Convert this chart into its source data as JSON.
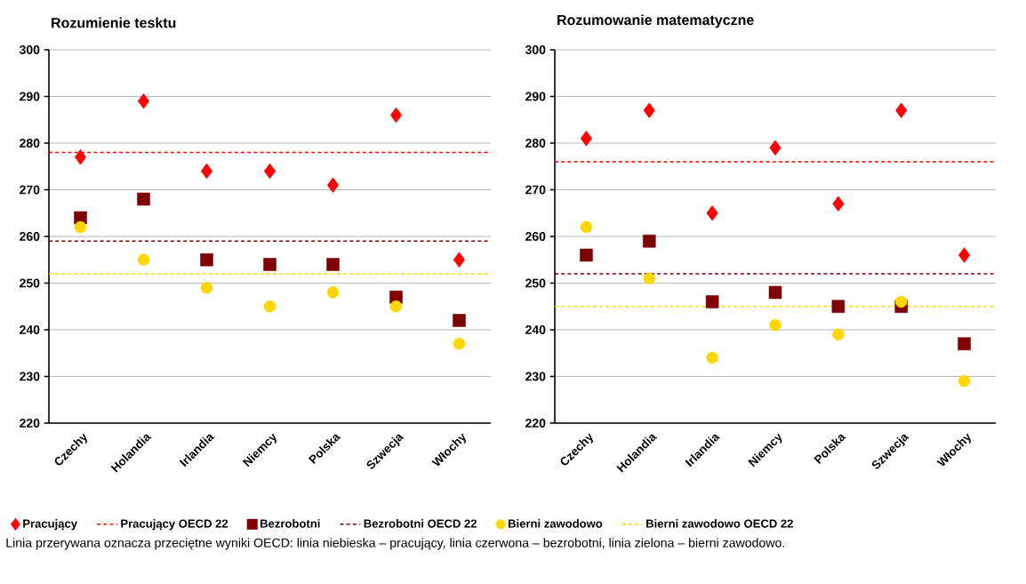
{
  "chart_data": [
    {
      "type": "scatter",
      "title": "Rozumienie tesktu",
      "categories": [
        "Czechy",
        "Holandia",
        "Irlandia",
        "Niemcy",
        "Polska",
        "Szwecja",
        "Włochy"
      ],
      "series": [
        {
          "name": "Pracujący",
          "color": "#ff0000",
          "marker": "diamond",
          "values": [
            277,
            289,
            274,
            274,
            271,
            286,
            255
          ]
        },
        {
          "name": "Bezrobotni",
          "color": "#7f0000",
          "marker": "square",
          "values": [
            264,
            268,
            255,
            254,
            254,
            247,
            242
          ]
        },
        {
          "name": "Bierni zawodowo",
          "color": "#ffd700",
          "marker": "circle",
          "values": [
            262,
            255,
            249,
            245,
            248,
            245,
            237
          ]
        }
      ],
      "ref_lines": [
        {
          "axis": "y",
          "value": 278,
          "label": "Pracujący OECD 22",
          "color": "#ff0000",
          "line_style": "dashed"
        },
        {
          "axis": "y",
          "value": 259,
          "label": "Bezrobotni OECD 22",
          "color": "#7f0000",
          "line_style": "dashed"
        },
        {
          "axis": "y",
          "value": 252,
          "label": "Bierni zawodowo OECD 22",
          "color": "#ffd700",
          "line_style": "dashed"
        }
      ],
      "ylim": [
        220,
        300
      ],
      "yticks": [
        220,
        230,
        240,
        250,
        260,
        270,
        280,
        290,
        300
      ],
      "grid": "y",
      "legend": "bottom",
      "annotations": [
        "Linia przerywana oznacza przeciętne wyniki OECD: linia niebieska – pracujący, linia czerwona – bezrobotni, linia zielona – bierni zawodowo."
      ]
    },
    {
      "type": "scatter",
      "title": "Rozumowanie matematyczne",
      "categories": [
        "Czechy",
        "Holandia",
        "Irlandia",
        "Niemcy",
        "Polska",
        "Szwecja",
        "Włochy"
      ],
      "series": [
        {
          "color": "#ff0000",
          "marker": "diamond",
          "values": [
            281,
            287,
            265,
            279,
            267,
            287,
            256
          ]
        },
        {
          "color": "#7f0000",
          "marker": "square",
          "values": [
            256,
            259,
            246,
            248,
            245,
            245,
            237
          ]
        },
        {
          "color": "#ffd700",
          "marker": "circle",
          "values": [
            262,
            251,
            234,
            241,
            239,
            246,
            229
          ]
        }
      ],
      "ref_lines": [
        {
          "axis": "y",
          "value": 276,
          "color": "#ff0000",
          "line_style": "dashed"
        },
        {
          "axis": "y",
          "value": 252,
          "color": "#7f0000",
          "line_style": "dashed"
        },
        {
          "axis": "y",
          "value": 245,
          "color": "#ffd700",
          "line_style": "dashed"
        }
      ],
      "ylim": [
        220,
        300
      ],
      "yticks": [
        220,
        230,
        240,
        250,
        260,
        270,
        280,
        290,
        300
      ],
      "grid": "y"
    }
  ]
}
